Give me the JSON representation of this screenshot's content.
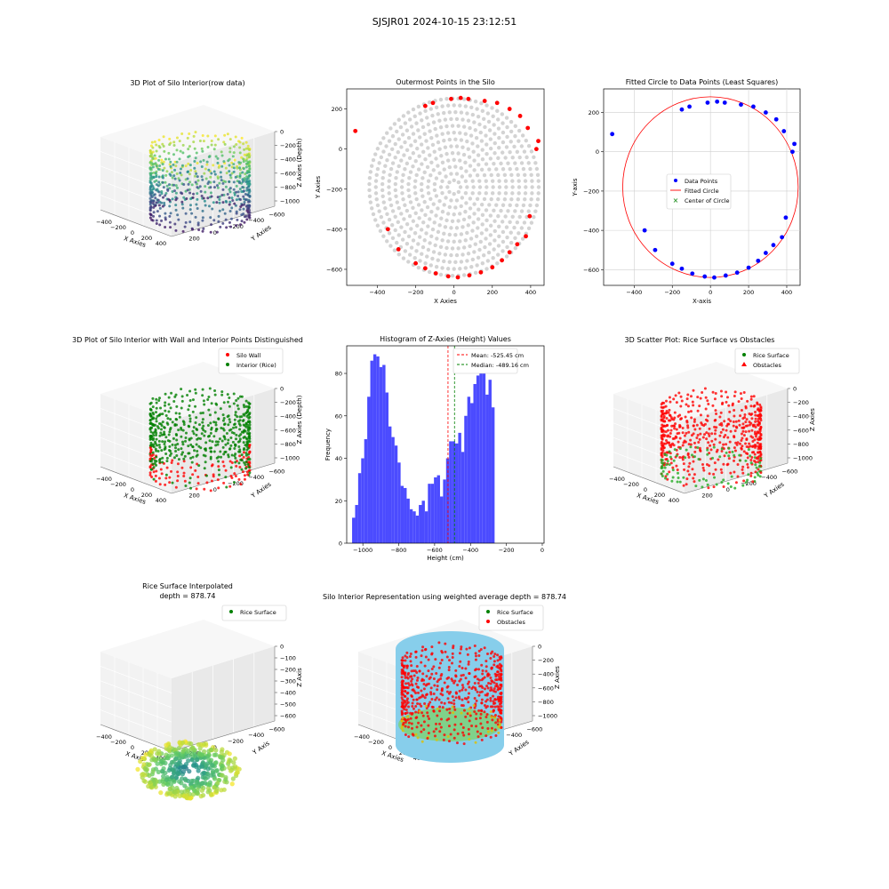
{
  "figure_title": "SJSJR01 2024-10-15 23:12:51",
  "chart_data": [
    {
      "id": "p1",
      "type": "scatter3d",
      "title": "3D Plot of Silo Interior(row data)",
      "xlabel": "X Axies",
      "ylabel": "Y Axies",
      "zlabel": "Z Axies (Depth)",
      "xticks": [
        "−400",
        "−200",
        "0",
        "200",
        "400"
      ],
      "yticks": [
        "200",
        "0",
        "−200",
        "−400",
        "−600"
      ],
      "zticks": [
        "0",
        "−200",
        "−400",
        "−600",
        "−800",
        "−1000"
      ],
      "colormap": "viridis"
    },
    {
      "id": "p2",
      "type": "scatter",
      "title": "Outermost Points in the Silo",
      "xlabel": "X Axies",
      "ylabel": "Y Axies",
      "xlim": [
        -560,
        470
      ],
      "ylim": [
        -680,
        300
      ],
      "xticks": [
        -400,
        -200,
        0,
        200,
        400
      ],
      "yticks": [
        200,
        0,
        -200,
        -400,
        -600
      ],
      "xtick_labels": [
        "−400",
        "−200",
        "0",
        "200",
        "400"
      ],
      "ytick_labels": [
        "200",
        "0",
        "−200",
        "−400",
        "−600"
      ],
      "outer_points": [
        [
          -515,
          90
        ],
        [
          -345,
          -400
        ],
        [
          -290,
          -500
        ],
        [
          -200,
          -570
        ],
        [
          -150,
          -595
        ],
        [
          -95,
          -620
        ],
        [
          -30,
          -635
        ],
        [
          20,
          -640
        ],
        [
          80,
          -630
        ],
        [
          140,
          -615
        ],
        [
          200,
          -590
        ],
        [
          250,
          -555
        ],
        [
          290,
          -515
        ],
        [
          330,
          -475
        ],
        [
          375,
          -435
        ],
        [
          395,
          -335
        ],
        [
          430,
          0
        ],
        [
          440,
          40
        ],
        [
          385,
          105
        ],
        [
          345,
          165
        ],
        [
          290,
          200
        ],
        [
          225,
          230
        ],
        [
          160,
          240
        ],
        [
          75,
          250
        ],
        [
          35,
          255
        ],
        [
          -15,
          250
        ],
        [
          -110,
          230
        ],
        [
          -150,
          215
        ]
      ],
      "interior_color": "#d3d3d3",
      "outer_color": "#ff0000"
    },
    {
      "id": "p3",
      "type": "scatter",
      "title": "Fitted Circle to Data Points (Least Squares)",
      "xlabel": "X-axis",
      "ylabel": "Y-axis",
      "xlim": [
        -560,
        470
      ],
      "ylim": [
        -680,
        320
      ],
      "xticks": [
        -400,
        -200,
        0,
        200,
        400
      ],
      "yticks": [
        200,
        0,
        -200,
        -400,
        -600
      ],
      "xtick_labels": [
        "−400",
        "−200",
        "0",
        "200",
        "400"
      ],
      "ytick_labels": [
        "200",
        "0",
        "−200",
        "−400",
        "−600"
      ],
      "grid": true,
      "legend": [
        "Data Points",
        "Fitted Circle",
        "Center of Circle"
      ],
      "legend_position": "center",
      "circle": {
        "cx": 0,
        "cy": -180,
        "r": 460
      },
      "points_color": "#0000ff",
      "circle_color": "#ff0000",
      "center_color": "#008000"
    },
    {
      "id": "p4",
      "type": "scatter3d",
      "title": "3D Plot of Silo Interior with Wall and Interior Points Distinguished",
      "xlabel": "X Axies",
      "ylabel": "Y Axies",
      "zlabel": "Z Axies (Depth)",
      "xticks": [
        "−400",
        "−200",
        "0",
        "200",
        "400"
      ],
      "yticks": [
        "200",
        "0",
        "−200",
        "−400",
        "−600"
      ],
      "zticks": [
        "0",
        "−200",
        "−400",
        "−600",
        "−800",
        "−1000"
      ],
      "legend": [
        "Silo Wall",
        "Interior (Rice)"
      ],
      "legend_position": "top-right"
    },
    {
      "id": "p5",
      "type": "bar",
      "title": "Histogram of Z-Axies (Height) Values",
      "xlabel": "Height (cm)",
      "ylabel": "Frequency",
      "bin_start": -1060,
      "bin_width": 16.9,
      "values": [
        12,
        18,
        33,
        40,
        49,
        69,
        86,
        89,
        88,
        83,
        84,
        71,
        55,
        50,
        46,
        38,
        27,
        26,
        21,
        16,
        15,
        13,
        18,
        20,
        15,
        28,
        28,
        31,
        32,
        22,
        30,
        40,
        48,
        48,
        47,
        52,
        43,
        60,
        69,
        66,
        75,
        79,
        82,
        80,
        70,
        77,
        64
      ],
      "xlim": [
        -1090,
        10
      ],
      "ylim": [
        0,
        93
      ],
      "xticks": [
        -1000,
        -800,
        -600,
        -400,
        -200,
        0
      ],
      "yticks": [
        0,
        20,
        40,
        60,
        80
      ],
      "xtick_labels": [
        "−1000",
        "−800",
        "−600",
        "−400",
        "−200",
        "0"
      ],
      "ytick_labels": [
        "0",
        "20",
        "40",
        "60",
        "80"
      ],
      "mean": -525.45,
      "median": -489.16,
      "legend": [
        "Mean: -525.45 cm",
        "Median: -489.16 cm"
      ],
      "legend_position": "top-right",
      "bar_color": "#4b4bff",
      "mean_color": "#ff0000",
      "median_color": "#008000"
    },
    {
      "id": "p6",
      "type": "scatter3d",
      "title": "3D Scatter Plot: Rice Surface vs Obstacles",
      "xlabel": "X Axies",
      "ylabel": "Y Axies",
      "zlabel": "Z Axies",
      "xticks": [
        "−400",
        "−200",
        "0",
        "200",
        "400"
      ],
      "yticks": [
        "200",
        "0",
        "−200",
        "−400",
        "−600"
      ],
      "zticks": [
        "0",
        "−200",
        "−400",
        "−600",
        "−800",
        "−1000"
      ],
      "legend": [
        "Rice Surface",
        "Obstacles"
      ],
      "legend_position": "top-right"
    },
    {
      "id": "p7",
      "type": "surface3d",
      "title": "Rice Surface Interpolated",
      "subtitle": "depth = 878.74",
      "xlabel": "X Axis",
      "ylabel": "Y Axis",
      "zlabel": "Z Axis",
      "xticks": [
        "−400",
        "−200",
        "0",
        "200",
        "400"
      ],
      "yticks": [
        "200",
        "0",
        "−200",
        "−400",
        "−600"
      ],
      "zticks": [
        "0",
        "−100",
        "−200",
        "−300",
        "−400",
        "−500",
        "−600"
      ],
      "legend": [
        "Rice Surface"
      ],
      "legend_position": "top-right"
    },
    {
      "id": "p8",
      "type": "scatter3d",
      "title": "Silo Interior Representation using weighted average depth = 878.74",
      "xlabel": "X Axies",
      "ylabel": "Y Axies",
      "zlabel": "Z Axies",
      "xticks": [
        "−400",
        "−200",
        "0",
        "200",
        "400"
      ],
      "yticks": [
        "200",
        "0",
        "−200",
        "−400",
        "−600"
      ],
      "zticks": [
        "0",
        "−200",
        "−400",
        "−600",
        "−800",
        "−1000"
      ],
      "legend": [
        "Rice Surface",
        "Obstacles"
      ],
      "legend_position": "top-center",
      "cylinder_color": "#87ceeb"
    }
  ]
}
